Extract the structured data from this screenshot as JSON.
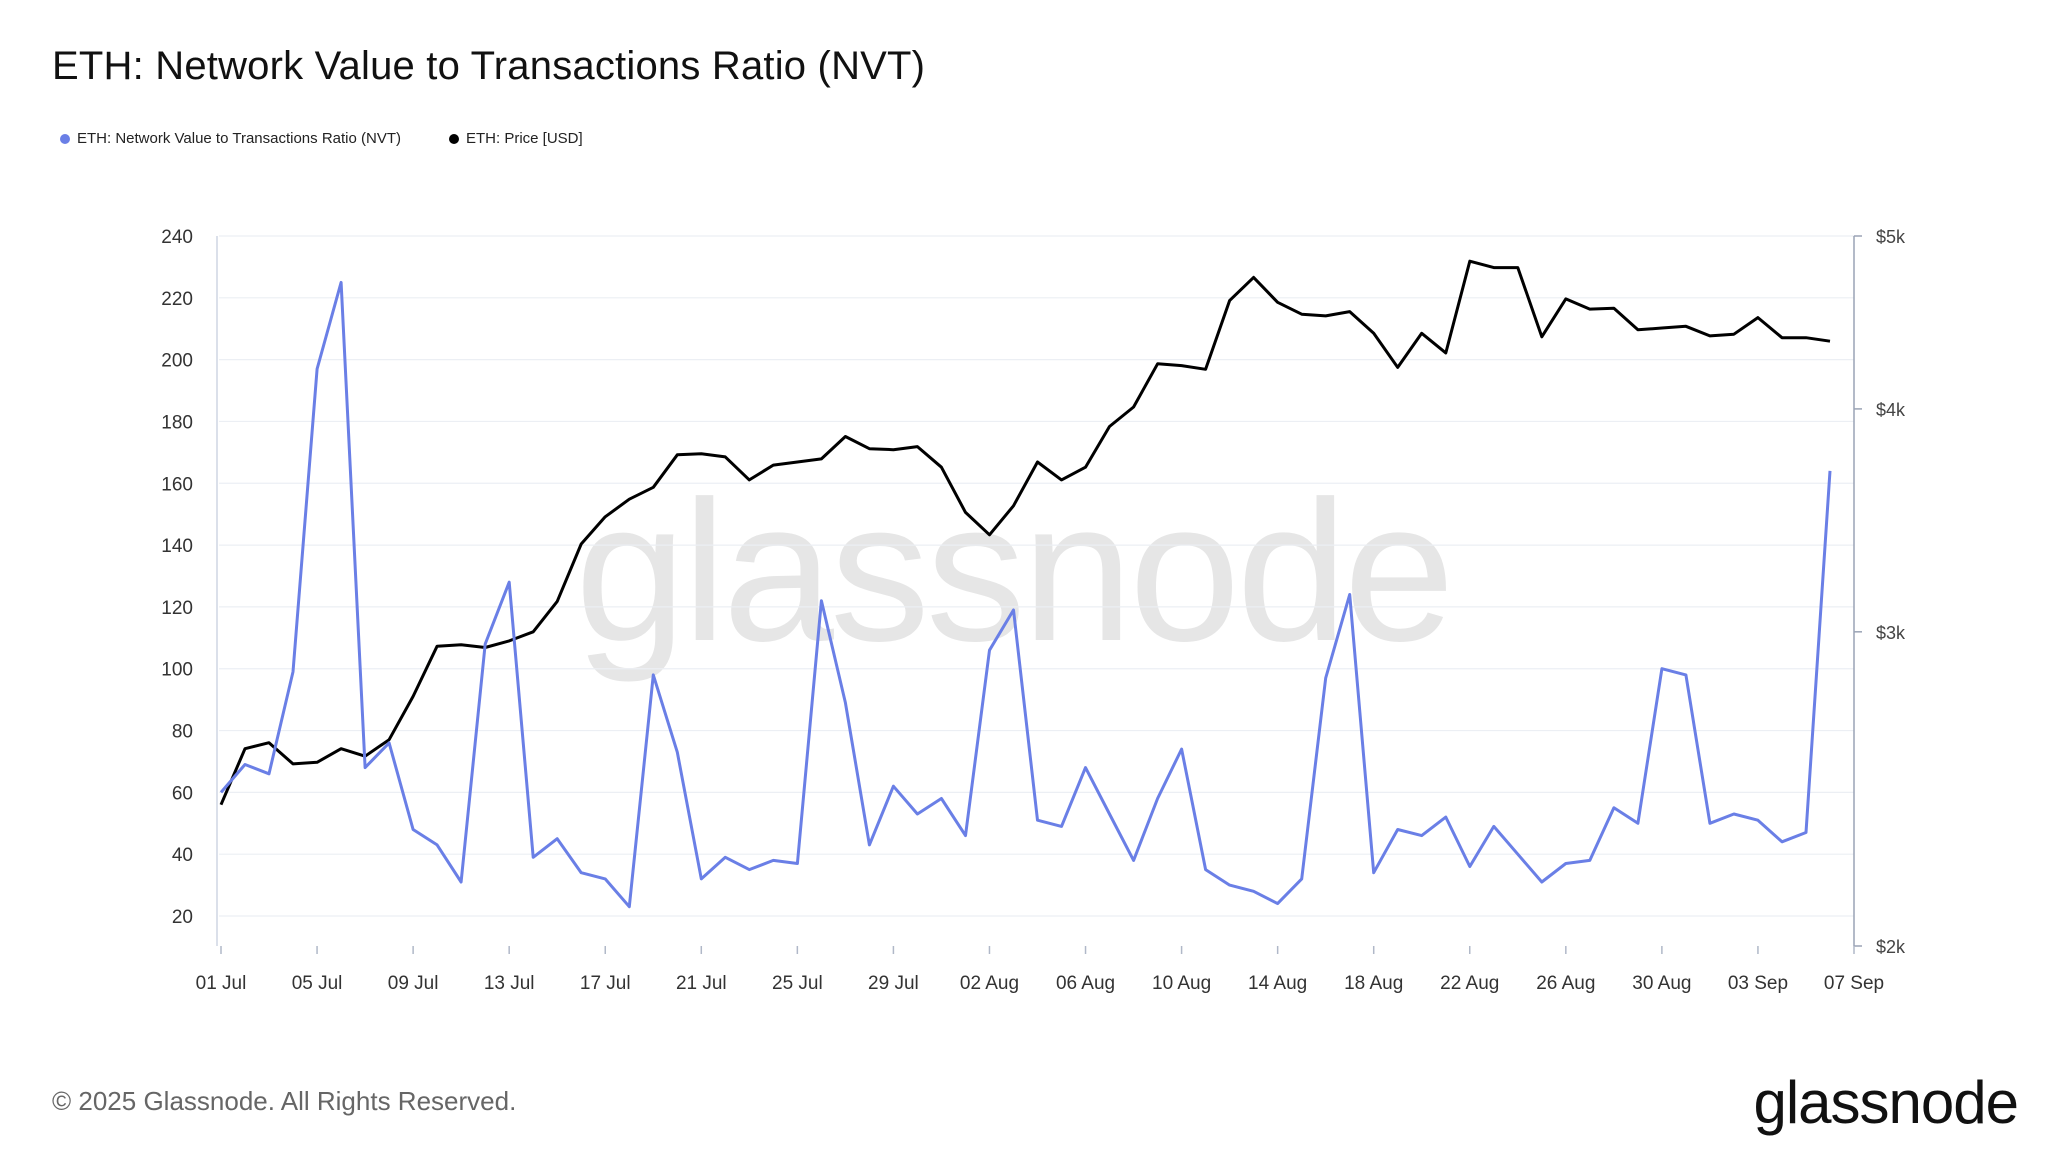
{
  "title": "ETH: Network Value to Transactions Ratio (NVT)",
  "legend": [
    {
      "label": "ETH: Network Value to Transactions Ratio (NVT)",
      "color": "#6a7fe6"
    },
    {
      "label": "ETH: Price [USD]",
      "color": "#000000"
    }
  ],
  "footer": "© 2025 Glassnode. All Rights Reserved.",
  "logo": "glassnode",
  "watermark": "glassnode",
  "chart_data": {
    "type": "line",
    "title": "ETH: Network Value to Transactions Ratio (NVT)",
    "x_ticks": [
      "01 Jul",
      "05 Jul",
      "09 Jul",
      "13 Jul",
      "17 Jul",
      "21 Jul",
      "25 Jul",
      "29 Jul",
      "02 Aug",
      "06 Aug",
      "10 Aug",
      "14 Aug",
      "18 Aug",
      "22 Aug",
      "26 Aug",
      "30 Aug",
      "03 Sep",
      "07 Sep"
    ],
    "x_start": "2025-07-01",
    "y_left": {
      "ticks": [
        20,
        40,
        60,
        80,
        100,
        120,
        140,
        160,
        180,
        200,
        220,
        240
      ],
      "range": [
        10,
        240
      ]
    },
    "y_right": {
      "ticks": [
        "$2k",
        "$3k",
        "$4k",
        "$5k"
      ],
      "tick_values": [
        2000,
        3000,
        4000,
        5000
      ],
      "scale": "log",
      "range": [
        2000,
        5000
      ]
    },
    "grid": true,
    "legend_position": "top-left",
    "series": [
      {
        "name": "ETH: Network Value to Transactions Ratio (NVT)",
        "axis": "left",
        "color": "#6a7fe6",
        "values": [
          60,
          69,
          66,
          99,
          197,
          225,
          68,
          76,
          48,
          43,
          31,
          108,
          128,
          39,
          45,
          34,
          32,
          23,
          98,
          73,
          32,
          39,
          35,
          38,
          37,
          122,
          89,
          43,
          62,
          53,
          58,
          46,
          106,
          119,
          51,
          49,
          68,
          53,
          38,
          58,
          74,
          35,
          30,
          28,
          24,
          32,
          97,
          124,
          34,
          48,
          46,
          52,
          36,
          49,
          40,
          31,
          37,
          38,
          55,
          50,
          100,
          98,
          50,
          53,
          51,
          44,
          47,
          164
        ]
      },
      {
        "name": "ETH: Price [USD]",
        "axis": "right",
        "color": "#000000",
        "values": [
          2400,
          2580,
          2600,
          2530,
          2535,
          2580,
          2555,
          2610,
          2760,
          2945,
          2950,
          2940,
          2965,
          3000,
          3120,
          3360,
          3480,
          3560,
          3615,
          3770,
          3775,
          3760,
          3650,
          3720,
          3735,
          3750,
          3860,
          3800,
          3795,
          3810,
          3710,
          3500,
          3400,
          3530,
          3735,
          3650,
          3710,
          3910,
          4010,
          4240,
          4230,
          4210,
          4600,
          4740,
          4590,
          4520,
          4510,
          4535,
          4410,
          4220,
          4410,
          4300,
          4840,
          4800,
          4800,
          4390,
          4610,
          4550,
          4555,
          4430,
          4440,
          4450,
          4395,
          4405,
          4500,
          4385,
          4385,
          4365
        ]
      }
    ]
  }
}
